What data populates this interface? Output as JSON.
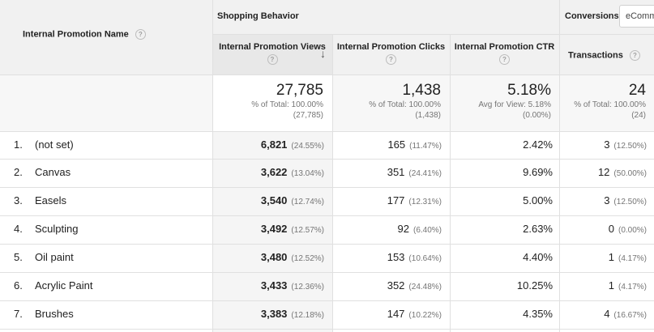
{
  "table": {
    "dimension_header": "Internal Promotion Name",
    "group_shopping": "Shopping Behavior",
    "group_conversions": "Conversions",
    "conversions_select": "eComm",
    "columns": {
      "views": "Internal Promotion Views",
      "clicks": "Internal Promotion Clicks",
      "ctr": "Internal Promotion CTR",
      "transactions": "Transactions"
    },
    "help_glyph": "?",
    "sort_arrow": "↓",
    "summary": {
      "views": {
        "value": "27,785",
        "line1": "% of Total: 100.00%",
        "line2": "(27,785)"
      },
      "clicks": {
        "value": "1,438",
        "line1": "% of Total: 100.00%",
        "line2": "(1,438)"
      },
      "ctr": {
        "value": "5.18%",
        "line1": "Avg for View: 5.18%",
        "line2": "(0.00%)"
      },
      "transactions": {
        "value": "24",
        "line1": "% of Total: 100.00%",
        "line2": "(24)"
      }
    },
    "rows": [
      {
        "idx": "1.",
        "name": "(not set)",
        "views": "6,821",
        "views_pct": "(24.55%)",
        "clicks": "165",
        "clicks_pct": "(11.47%)",
        "ctr": "2.42%",
        "tx": "3",
        "tx_pct": "(12.50%)"
      },
      {
        "idx": "2.",
        "name": "Canvas",
        "views": "3,622",
        "views_pct": "(13.04%)",
        "clicks": "351",
        "clicks_pct": "(24.41%)",
        "ctr": "9.69%",
        "tx": "12",
        "tx_pct": "(50.00%)"
      },
      {
        "idx": "3.",
        "name": "Easels",
        "views": "3,540",
        "views_pct": "(12.74%)",
        "clicks": "177",
        "clicks_pct": "(12.31%)",
        "ctr": "5.00%",
        "tx": "3",
        "tx_pct": "(12.50%)"
      },
      {
        "idx": "4.",
        "name": "Sculpting",
        "views": "3,492",
        "views_pct": "(12.57%)",
        "clicks": "92",
        "clicks_pct": "(6.40%)",
        "ctr": "2.63%",
        "tx": "0",
        "tx_pct": "(0.00%)"
      },
      {
        "idx": "5.",
        "name": "Oil paint",
        "views": "3,480",
        "views_pct": "(12.52%)",
        "clicks": "153",
        "clicks_pct": "(10.64%)",
        "ctr": "4.40%",
        "tx": "1",
        "tx_pct": "(4.17%)"
      },
      {
        "idx": "6.",
        "name": "Acrylic Paint",
        "views": "3,433",
        "views_pct": "(12.36%)",
        "clicks": "352",
        "clicks_pct": "(24.48%)",
        "ctr": "10.25%",
        "tx": "1",
        "tx_pct": "(4.17%)"
      },
      {
        "idx": "7.",
        "name": "Brushes",
        "views": "3,383",
        "views_pct": "(12.18%)",
        "clicks": "147",
        "clicks_pct": "(10.22%)",
        "ctr": "4.35%",
        "tx": "4",
        "tx_pct": "(16.67%)"
      }
    ]
  }
}
